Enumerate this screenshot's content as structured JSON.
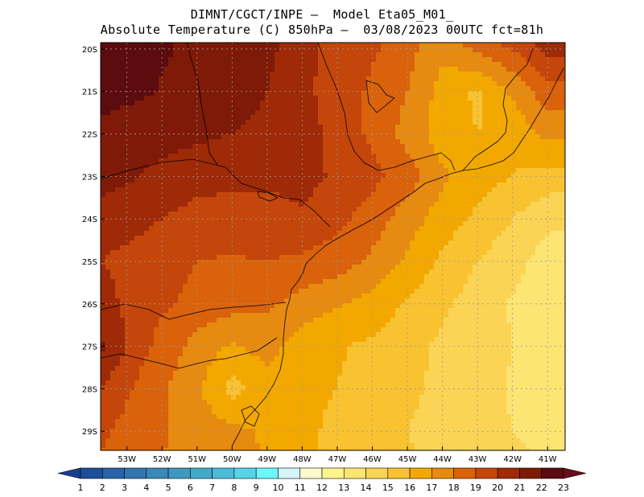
{
  "chart_data": {
    "type": "heatmap",
    "title_line1": "DIMNT/CGCT/INPE –  Model Eta05_M01_",
    "title_line2": "Absolute Temperature (C) 850hPa –  03/08/2023 00UTC fct=81h",
    "lon_range": [
      -53.75,
      -40.5
    ],
    "lat_range": [
      -29.45,
      -19.85
    ],
    "x_ticks": [
      -53,
      -52,
      -51,
      -50,
      -49,
      -48,
      -47,
      -46,
      -45,
      -44,
      -43,
      -42,
      -41
    ],
    "x_tick_labels": [
      "53W",
      "52W",
      "51W",
      "50W",
      "49W",
      "48W",
      "47W",
      "46W",
      "45W",
      "44W",
      "43W",
      "42W",
      "41W"
    ],
    "y_ticks": [
      -20,
      -21,
      -22,
      -23,
      -24,
      -25,
      -26,
      -27,
      -28,
      -29
    ],
    "y_tick_labels": [
      "20S",
      "21S",
      "22S",
      "23S",
      "24S",
      "25S",
      "26S",
      "27S",
      "28S",
      "29S"
    ],
    "grid": true,
    "colorbar": {
      "labels": [
        "1",
        "2",
        "3",
        "4",
        "5",
        "6",
        "7",
        "8",
        "9",
        "10",
        "11",
        "12",
        "13",
        "14",
        "15",
        "16",
        "17",
        "18",
        "19",
        "20",
        "21",
        "22",
        "23"
      ],
      "colors": [
        "#1a3d8f",
        "#1f4e99",
        "#2a62a5",
        "#3276ad",
        "#3a88b6",
        "#3f99bf",
        "#44a9c8",
        "#4cbcd6",
        "#57d4e6",
        "#6ef6ff",
        "#d5f4fc",
        "#fff8cf",
        "#fff38c",
        "#fde574",
        "#fbd455",
        "#f8c231",
        "#f3a800",
        "#e78a10",
        "#d9620b",
        "#c5460a",
        "#9e2a07",
        "#7e1a07",
        "#5c0b0f",
        "#6a0b1b"
      ],
      "arrows": "both"
    },
    "field": [
      {
        "lon": -53.75,
        "lat": -19.85,
        "v": 22.6
      },
      {
        "lon": -52.5,
        "lat": -19.85,
        "v": 22.3
      },
      {
        "lon": -51,
        "lat": -19.85,
        "v": 21.8
      },
      {
        "lon": -50,
        "lat": -19.85,
        "v": 21.6
      },
      {
        "lon": -49,
        "lat": -19.85,
        "v": 21.3
      },
      {
        "lon": -48,
        "lat": -19.85,
        "v": 20.4
      },
      {
        "lon": -47,
        "lat": -19.85,
        "v": 19.5
      },
      {
        "lon": -46,
        "lat": -19.85,
        "v": 19.2
      },
      {
        "lon": -45,
        "lat": -19.85,
        "v": 18.4
      },
      {
        "lon": -44,
        "lat": -19.85,
        "v": 17.3
      },
      {
        "lon": -43,
        "lat": -19.85,
        "v": 18.6
      },
      {
        "lon": -42,
        "lat": -19.85,
        "v": 19.3
      },
      {
        "lon": -41,
        "lat": -19.85,
        "v": 20.5
      },
      {
        "lon": -53.75,
        "lat": -21,
        "v": 22.3
      },
      {
        "lon": -52.5,
        "lat": -21,
        "v": 22.1
      },
      {
        "lon": -51,
        "lat": -21,
        "v": 21.6
      },
      {
        "lon": -50,
        "lat": -21,
        "v": 21.4
      },
      {
        "lon": -49,
        "lat": -21,
        "v": 21
      },
      {
        "lon": -48,
        "lat": -21,
        "v": 20.2
      },
      {
        "lon": -47,
        "lat": -21,
        "v": 19.6
      },
      {
        "lon": -46,
        "lat": -21,
        "v": 18.8
      },
      {
        "lon": -45,
        "lat": -21,
        "v": 18
      },
      {
        "lon": -44,
        "lat": -21,
        "v": 16.6
      },
      {
        "lon": -43,
        "lat": -21,
        "v": 15.8
      },
      {
        "lon": -42,
        "lat": -21,
        "v": 17.2
      },
      {
        "lon": -41,
        "lat": -21,
        "v": 18.6
      },
      {
        "lon": -53.75,
        "lat": -22,
        "v": 21.8
      },
      {
        "lon": -52.5,
        "lat": -22,
        "v": 21.5
      },
      {
        "lon": -51,
        "lat": -22,
        "v": 21.2
      },
      {
        "lon": -50,
        "lat": -22,
        "v": 21
      },
      {
        "lon": -49,
        "lat": -22,
        "v": 20.8
      },
      {
        "lon": -48,
        "lat": -22,
        "v": 20.5
      },
      {
        "lon": -47,
        "lat": -22,
        "v": 19.6
      },
      {
        "lon": -46,
        "lat": -22,
        "v": 18.8
      },
      {
        "lon": -45,
        "lat": -22,
        "v": 17.6
      },
      {
        "lon": -44,
        "lat": -22,
        "v": 16.5
      },
      {
        "lon": -43,
        "lat": -22,
        "v": 16
      },
      {
        "lon": -42,
        "lat": -22,
        "v": 16.2
      },
      {
        "lon": -41,
        "lat": -22,
        "v": 17.3
      },
      {
        "lon": -53.75,
        "lat": -23,
        "v": 21.5
      },
      {
        "lon": -52.5,
        "lat": -23,
        "v": 20.9
      },
      {
        "lon": -51,
        "lat": -23,
        "v": 20.4
      },
      {
        "lon": -50,
        "lat": -23,
        "v": 20.3
      },
      {
        "lon": -49,
        "lat": -23,
        "v": 20.2
      },
      {
        "lon": -48,
        "lat": -23,
        "v": 20.4
      },
      {
        "lon": -47,
        "lat": -23,
        "v": 19.8
      },
      {
        "lon": -46,
        "lat": -23,
        "v": 19.3
      },
      {
        "lon": -45,
        "lat": -23,
        "v": 18.5
      },
      {
        "lon": -44,
        "lat": -23,
        "v": 17.2
      },
      {
        "lon": -43,
        "lat": -23,
        "v": 16.4
      },
      {
        "lon": -42,
        "lat": -23,
        "v": 16
      },
      {
        "lon": -41,
        "lat": -23,
        "v": 15.6
      },
      {
        "lon": -53.75,
        "lat": -24,
        "v": 20.5
      },
      {
        "lon": -52.5,
        "lat": -24,
        "v": 20.2
      },
      {
        "lon": -51,
        "lat": -24,
        "v": 19.6
      },
      {
        "lon": -50,
        "lat": -24,
        "v": 19.5
      },
      {
        "lon": -49,
        "lat": -24,
        "v": 19.6
      },
      {
        "lon": -48,
        "lat": -24,
        "v": 19.8
      },
      {
        "lon": -47,
        "lat": -24,
        "v": 19.3
      },
      {
        "lon": -46,
        "lat": -24,
        "v": 18.5
      },
      {
        "lon": -45,
        "lat": -24,
        "v": 17.5
      },
      {
        "lon": -44,
        "lat": -24,
        "v": 16.5
      },
      {
        "lon": -43,
        "lat": -24,
        "v": 15.8
      },
      {
        "lon": -42,
        "lat": -24,
        "v": 15
      },
      {
        "lon": -41,
        "lat": -24,
        "v": 14.2
      },
      {
        "lon": -53.75,
        "lat": -25,
        "v": 20
      },
      {
        "lon": -52.5,
        "lat": -25,
        "v": 19.6
      },
      {
        "lon": -51,
        "lat": -25,
        "v": 19
      },
      {
        "lon": -50,
        "lat": -25,
        "v": 18.9
      },
      {
        "lon": -49,
        "lat": -25,
        "v": 19
      },
      {
        "lon": -48,
        "lat": -25,
        "v": 18.8
      },
      {
        "lon": -47,
        "lat": -25,
        "v": 18.5
      },
      {
        "lon": -46,
        "lat": -25,
        "v": 17.8
      },
      {
        "lon": -45,
        "lat": -25,
        "v": 16.8
      },
      {
        "lon": -44,
        "lat": -25,
        "v": 15.8
      },
      {
        "lon": -43,
        "lat": -25,
        "v": 15
      },
      {
        "lon": -42,
        "lat": -25,
        "v": 14.3
      },
      {
        "lon": -41,
        "lat": -25,
        "v": 13.6
      },
      {
        "lon": -53.75,
        "lat": -26,
        "v": 20.4
      },
      {
        "lon": -52.5,
        "lat": -26,
        "v": 19.4
      },
      {
        "lon": -51,
        "lat": -26,
        "v": 18.7
      },
      {
        "lon": -50,
        "lat": -26,
        "v": 18.4
      },
      {
        "lon": -49,
        "lat": -26,
        "v": 18.2
      },
      {
        "lon": -48,
        "lat": -26,
        "v": 17.6
      },
      {
        "lon": -47,
        "lat": -26,
        "v": 17.1
      },
      {
        "lon": -46,
        "lat": -26,
        "v": 16.6
      },
      {
        "lon": -45,
        "lat": -26,
        "v": 15.9
      },
      {
        "lon": -44,
        "lat": -26,
        "v": 15.2
      },
      {
        "lon": -43,
        "lat": -26,
        "v": 14.5
      },
      {
        "lon": -42,
        "lat": -26,
        "v": 13.9
      },
      {
        "lon": -41,
        "lat": -26,
        "v": 13.4
      },
      {
        "lon": -53.75,
        "lat": -27,
        "v": 21.2
      },
      {
        "lon": -52.5,
        "lat": -27,
        "v": 19.2
      },
      {
        "lon": -51,
        "lat": -27,
        "v": 17.6
      },
      {
        "lon": -50,
        "lat": -27,
        "v": 16.9
      },
      {
        "lon": -49,
        "lat": -27,
        "v": 17.4
      },
      {
        "lon": -48,
        "lat": -27,
        "v": 16.4
      },
      {
        "lon": -47,
        "lat": -27,
        "v": 16.1
      },
      {
        "lon": -46,
        "lat": -27,
        "v": 15.8
      },
      {
        "lon": -45,
        "lat": -27,
        "v": 15.3
      },
      {
        "lon": -44,
        "lat": -27,
        "v": 14.8
      },
      {
        "lon": -43,
        "lat": -27,
        "v": 14.4
      },
      {
        "lon": -42,
        "lat": -27,
        "v": 14
      },
      {
        "lon": -41,
        "lat": -27,
        "v": 13.8
      },
      {
        "lon": -53.75,
        "lat": -28,
        "v": 20
      },
      {
        "lon": -52.5,
        "lat": -28,
        "v": 18.6
      },
      {
        "lon": -51,
        "lat": -28,
        "v": 17.2
      },
      {
        "lon": -50,
        "lat": -28,
        "v": 15.6
      },
      {
        "lon": -49,
        "lat": -28,
        "v": 16.6
      },
      {
        "lon": -48,
        "lat": -28,
        "v": 16.2
      },
      {
        "lon": -47,
        "lat": -28,
        "v": 16
      },
      {
        "lon": -46,
        "lat": -28,
        "v": 15.6
      },
      {
        "lon": -45,
        "lat": -28,
        "v": 15.2
      },
      {
        "lon": -44,
        "lat": -28,
        "v": 14.8
      },
      {
        "lon": -43,
        "lat": -28,
        "v": 14.4
      },
      {
        "lon": -42,
        "lat": -28,
        "v": 13.9
      },
      {
        "lon": -41,
        "lat": -28,
        "v": 13.6
      },
      {
        "lon": -53.75,
        "lat": -29,
        "v": 19.2
      },
      {
        "lon": -52.5,
        "lat": -29,
        "v": 18.3
      },
      {
        "lon": -51,
        "lat": -29,
        "v": 17.6
      },
      {
        "lon": -50,
        "lat": -29,
        "v": 17.3
      },
      {
        "lon": -49,
        "lat": -29,
        "v": 16.8
      },
      {
        "lon": -48,
        "lat": -29,
        "v": 16.2
      },
      {
        "lon": -47,
        "lat": -29,
        "v": 15.8
      },
      {
        "lon": -46,
        "lat": -29,
        "v": 15.4
      },
      {
        "lon": -45,
        "lat": -29,
        "v": 15
      },
      {
        "lon": -44,
        "lat": -29,
        "v": 14.6
      },
      {
        "lon": -43,
        "lat": -29,
        "v": 14.3
      },
      {
        "lon": -42,
        "lat": -29,
        "v": 14
      },
      {
        "lon": -41,
        "lat": -29,
        "v": 13.8
      },
      {
        "lon": -53.75,
        "lat": -29.45,
        "v": 19
      },
      {
        "lon": -52.5,
        "lat": -29.45,
        "v": 18.2
      },
      {
        "lon": -51,
        "lat": -29.45,
        "v": 17.7
      },
      {
        "lon": -50,
        "lat": -29.45,
        "v": 17.5
      },
      {
        "lon": -49,
        "lat": -29.45,
        "v": 16.9
      },
      {
        "lon": -48,
        "lat": -29.45,
        "v": 16.2
      },
      {
        "lon": -47,
        "lat": -29.45,
        "v": 15.8
      },
      {
        "lon": -46,
        "lat": -29.45,
        "v": 15.5
      },
      {
        "lon": -45,
        "lat": -29.45,
        "v": 15.1
      },
      {
        "lon": -44,
        "lat": -29.45,
        "v": 14.7
      },
      {
        "lon": -43,
        "lat": -29.45,
        "v": 14.4
      },
      {
        "lon": -42,
        "lat": -29.45,
        "v": 14.1
      },
      {
        "lon": -41,
        "lat": -29.45,
        "v": 13.9
      }
    ],
    "note": "field values are approximate temperatures (C) read from the shaded colors"
  }
}
